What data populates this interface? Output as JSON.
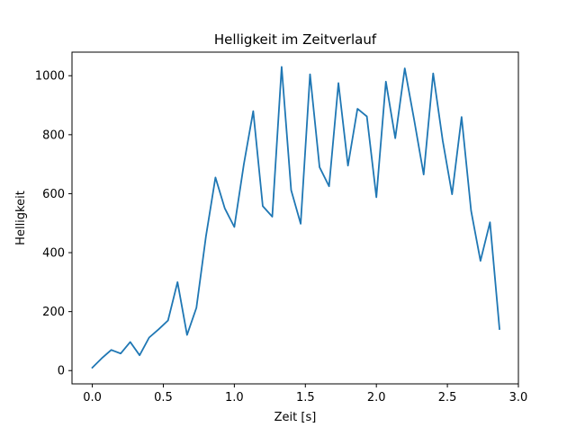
{
  "chart_data": {
    "type": "line",
    "title": "Helligkeit im Zeitverlauf",
    "xlabel": "Zeit [s]",
    "ylabel": "Helligkeit",
    "xlim": [
      -0.143,
      3.0
    ],
    "ylim": [
      -45,
      1080
    ],
    "xticks": [
      0.0,
      0.5,
      1.0,
      1.5,
      2.0,
      2.5,
      3.0
    ],
    "xtick_labels": [
      "0.0",
      "0.5",
      "1.0",
      "1.5",
      "2.0",
      "2.5",
      "3.0"
    ],
    "yticks": [
      0,
      200,
      400,
      600,
      800,
      1000
    ],
    "ytick_labels": [
      "0",
      "200",
      "400",
      "600",
      "800",
      "1000"
    ],
    "grid": false,
    "legend": false,
    "series": [
      {
        "color": "#1f77b4",
        "x": [
          0.0,
          0.067,
          0.133,
          0.2,
          0.267,
          0.333,
          0.4,
          0.467,
          0.533,
          0.6,
          0.667,
          0.733,
          0.8,
          0.867,
          0.933,
          1.0,
          1.067,
          1.133,
          1.2,
          1.267,
          1.333,
          1.4,
          1.467,
          1.533,
          1.6,
          1.667,
          1.733,
          1.8,
          1.867,
          1.933,
          2.0,
          2.067,
          2.133,
          2.2,
          2.267,
          2.333,
          2.4,
          2.467,
          2.533,
          2.6,
          2.667,
          2.733,
          2.8,
          2.867
        ],
        "y": [
          10,
          42,
          70,
          58,
          97,
          52,
          112,
          140,
          170,
          300,
          121,
          213,
          455,
          655,
          550,
          487,
          700,
          880,
          558,
          522,
          1030,
          612,
          498,
          1005,
          690,
          625,
          975,
          695,
          888,
          862,
          588,
          980,
          788,
          1025,
          848,
          665,
          1008,
          780,
          598,
          860,
          542,
          372,
          503,
          141
        ]
      }
    ]
  }
}
